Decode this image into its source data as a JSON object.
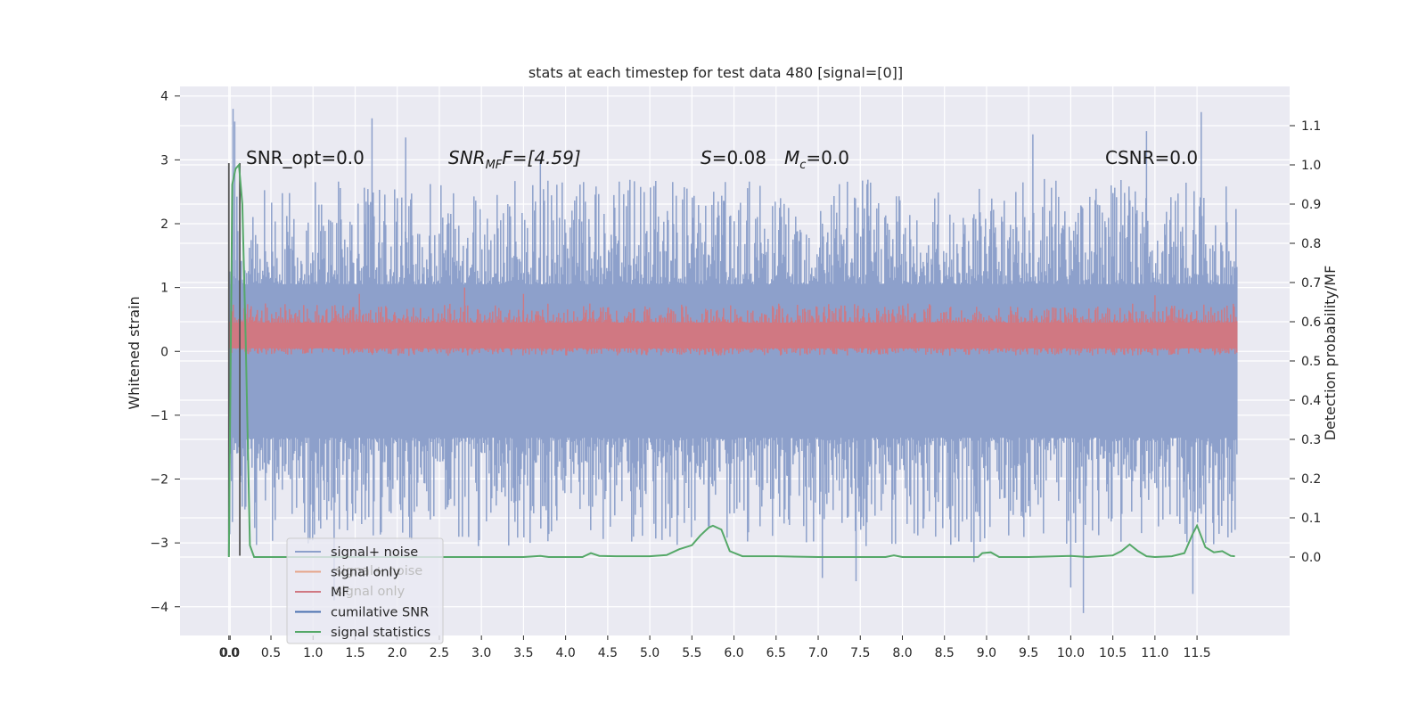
{
  "chart_data": {
    "type": "line",
    "title": "stats at each timestep for test data 480 [signal=[0]]",
    "ylabel": "Whitened strain",
    "y2label": "Detection probability/MF",
    "x_ticks": [
      "0.0",
      "0.0",
      "0.5",
      "1.0",
      "1.5",
      "2.0",
      "2.5",
      "3.0",
      "3.5",
      "4.0",
      "4.5",
      "5.0",
      "5.5",
      "6.0",
      "6.5",
      "7.0",
      "7.5",
      "8.0",
      "8.5",
      "9.0",
      "9.5",
      "10.0",
      "10.5",
      "11.0",
      "11.5"
    ],
    "x_tick_values": [
      0.0,
      0.015,
      0.5,
      1.0,
      1.5,
      2.0,
      2.5,
      3.0,
      3.5,
      4.0,
      4.5,
      5.0,
      5.5,
      6.0,
      6.5,
      7.0,
      7.5,
      8.0,
      8.5,
      9.0,
      9.5,
      10.0,
      10.5,
      11.0,
      11.5
    ],
    "xlim": [
      -0.58,
      12.6
    ],
    "y_ticks": [
      "4",
      "3",
      "2",
      "1",
      "0",
      "−1",
      "−2",
      "−3",
      "−4"
    ],
    "y_tick_values": [
      4,
      3,
      2,
      1,
      0,
      -1,
      -2,
      -3,
      -4
    ],
    "ylim": [
      -4.45,
      4.15
    ],
    "y2_ticks": [
      "1.1",
      "1.0",
      "0.9",
      "0.8",
      "0.7",
      "0.6",
      "0.5",
      "0.4",
      "0.3",
      "0.2",
      "0.1",
      "0.0"
    ],
    "y2_tick_values": [
      1.1,
      1.0,
      0.9,
      0.8,
      0.7,
      0.6,
      0.5,
      0.4,
      0.3,
      0.2,
      0.1,
      0.0
    ],
    "y2lim": [
      -0.2,
      1.2
    ],
    "grid": true,
    "legend_placement": "lower-left",
    "annotations": {
      "snr_opt": "SNR_opt=0.0",
      "snr_mf_main": "SNR",
      "snr_mf_sub": "MF",
      "snr_mf_rest": "F=[4.59]",
      "s_label": "S",
      "s_rest": "=0.08",
      "mc_label": "M",
      "mc_sub": "c",
      "mc_rest": "=0.0",
      "csnr": "CSNR=0.0"
    },
    "series": [
      {
        "name": "signal+ noise",
        "color": "#8da0cb",
        "x_range": [
          0.0,
          11.98
        ],
        "center": -0.15,
        "band": [
          -1.35,
          1.05
        ],
        "spike_range": [
          -4.1,
          3.8
        ],
        "peaks": [
          {
            "x": 0.05,
            "y": 3.8
          },
          {
            "x": 0.07,
            "y": 3.6
          },
          {
            "x": 1.7,
            "y": 3.65
          },
          {
            "x": 2.1,
            "y": 3.35
          },
          {
            "x": 3.7,
            "y": 3.0
          },
          {
            "x": 9.55,
            "y": 3.4
          },
          {
            "x": 10.9,
            "y": 3.45
          },
          {
            "x": 11.55,
            "y": 3.75
          },
          {
            "x": 1.25,
            "y": -3.9
          },
          {
            "x": 7.05,
            "y": -3.55
          },
          {
            "x": 7.45,
            "y": -3.6
          },
          {
            "x": 10.0,
            "y": -3.7
          },
          {
            "x": 10.15,
            "y": -4.1
          },
          {
            "x": 11.45,
            "y": -3.8
          },
          {
            "x": 8.85,
            "y": -3.3
          }
        ]
      },
      {
        "name": "signal only",
        "color": "#e5a58a",
        "values": "flat at 0.0 (not visible)"
      },
      {
        "name": "MF",
        "color": "#d07882",
        "x_range": [
          0.0,
          11.98
        ],
        "band": [
          0.05,
          0.45
        ],
        "max": 1.0,
        "peaks": [
          {
            "x": 2.8,
            "y": 1.0
          },
          {
            "x": 3.5,
            "y": 0.9
          },
          {
            "x": 1.55,
            "y": 0.9
          },
          {
            "x": 11.0,
            "y": 0.88
          }
        ]
      },
      {
        "name": "cumilative SNR",
        "color": "#4c72b0",
        "values": "not visible"
      },
      {
        "name": "signal statistics",
        "color": "#55a868",
        "axis": "right",
        "x": [
          0.0,
          0.04,
          0.08,
          0.12,
          0.16,
          0.2,
          0.25,
          0.3,
          0.5,
          1.0,
          2.0,
          3.0,
          3.5,
          3.7,
          3.8,
          4.0,
          4.2,
          4.3,
          4.4,
          4.6,
          5.0,
          5.2,
          5.35,
          5.5,
          5.6,
          5.7,
          5.75,
          5.85,
          5.95,
          6.1,
          6.5,
          7.0,
          7.5,
          7.8,
          7.9,
          8.0,
          8.5,
          8.9,
          8.95,
          9.05,
          9.15,
          9.5,
          10.0,
          10.2,
          10.5,
          10.6,
          10.7,
          10.8,
          10.9,
          11.0,
          11.2,
          11.35,
          11.45,
          11.5,
          11.6,
          11.7,
          11.8,
          11.9,
          11.95
        ],
        "y": [
          0.0,
          0.95,
          0.99,
          1.0,
          0.9,
          0.55,
          0.03,
          0.0,
          0.0,
          0.0,
          0.0,
          0.0,
          0.0,
          0.003,
          0.0,
          0.0,
          0.0,
          0.01,
          0.003,
          0.002,
          0.002,
          0.005,
          0.02,
          0.03,
          0.055,
          0.075,
          0.08,
          0.07,
          0.015,
          0.002,
          0.002,
          0.0,
          0.0,
          0.0,
          0.004,
          0.0,
          0.0,
          0.0,
          0.01,
          0.012,
          0.0,
          0.0,
          0.003,
          0.0,
          0.004,
          0.015,
          0.032,
          0.015,
          0.002,
          0.0,
          0.002,
          0.01,
          0.06,
          0.08,
          0.025,
          0.012,
          0.015,
          0.003,
          0.002
        ]
      }
    ],
    "vertical_markers": [
      {
        "x": 0.0,
        "y": [
          -3.2,
          2.95
        ]
      },
      {
        "x": 0.13,
        "y": [
          -3.2,
          2.95
        ]
      }
    ],
    "ghost_legend": [
      "signal+ noise",
      "signal only"
    ]
  }
}
